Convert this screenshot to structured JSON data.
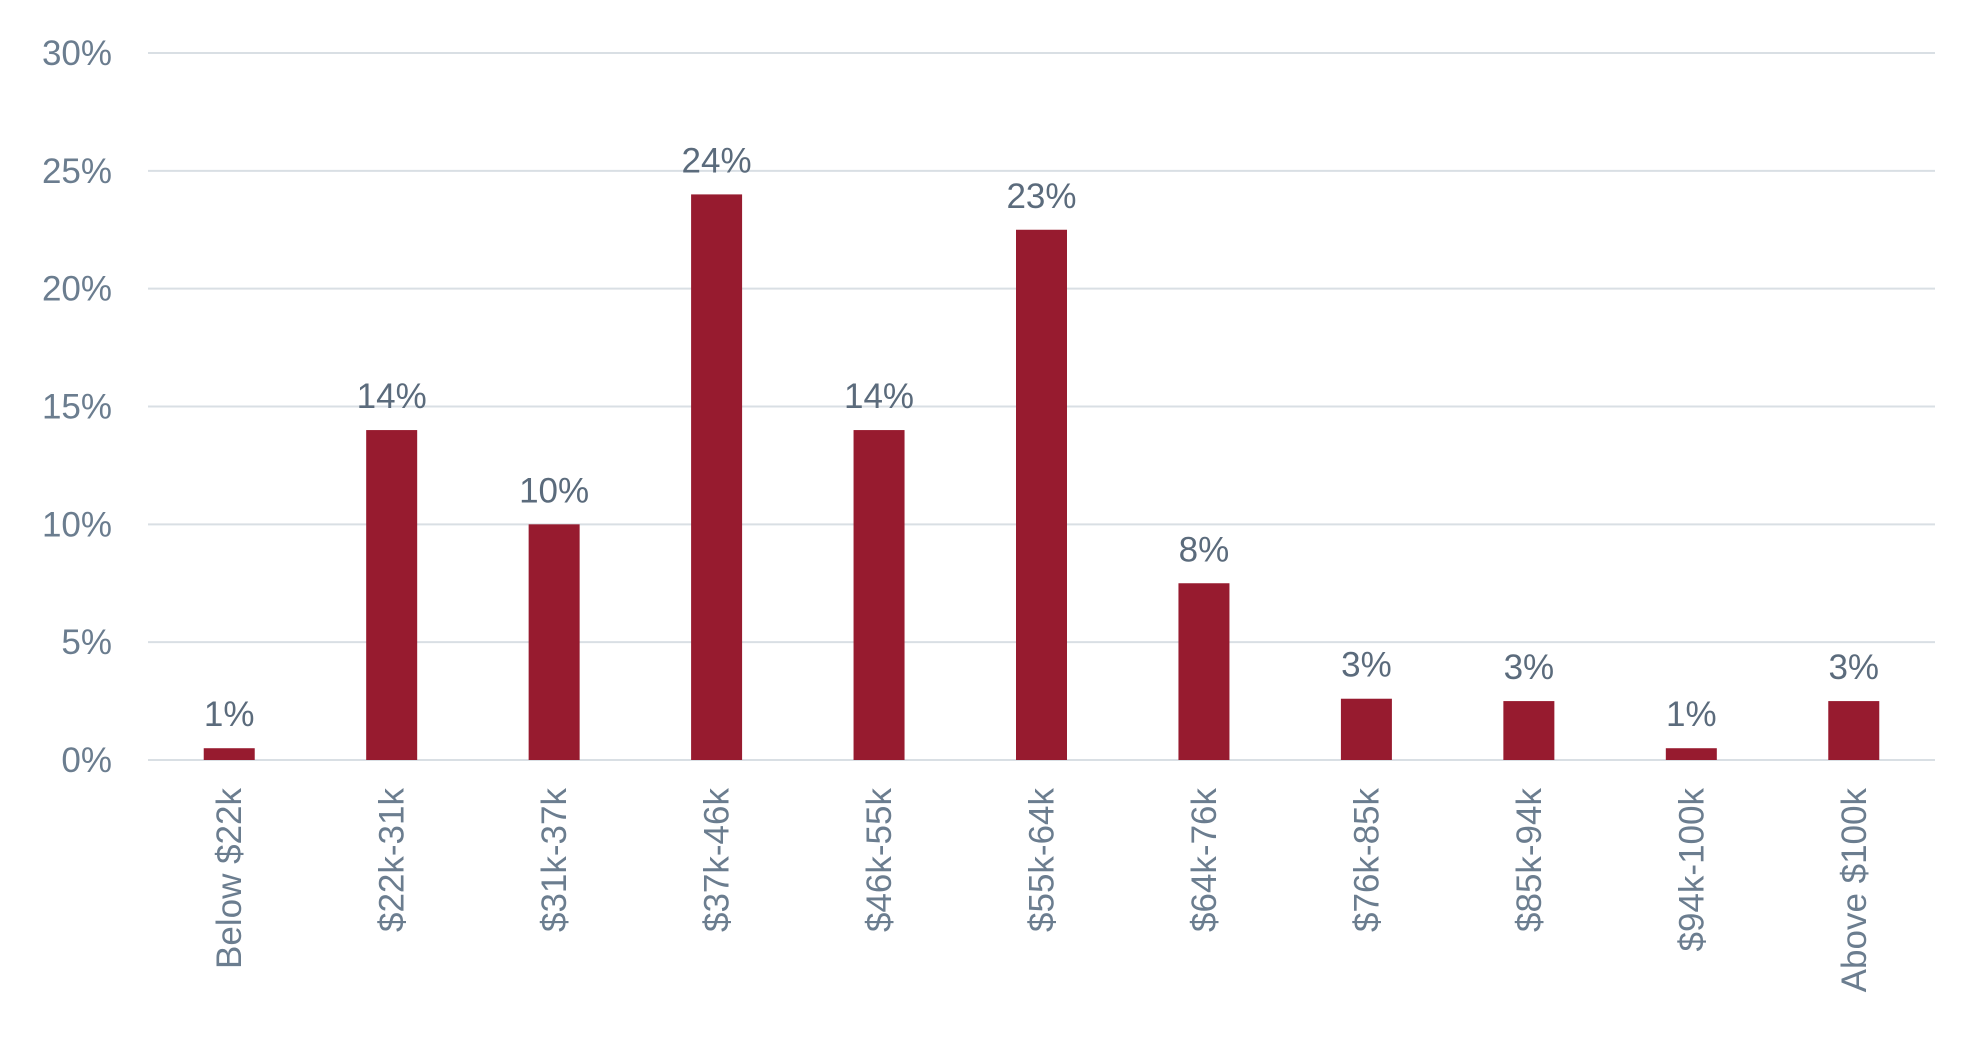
{
  "chart_data": {
    "type": "bar",
    "title": "",
    "xlabel": "",
    "ylabel": "",
    "categories": [
      "Below $22k",
      "$22k-31k",
      "$31k-37k",
      "$37k-46k",
      "$46k-55k",
      "$55k-64k",
      "$64k-76k",
      "$76k-85k",
      "$85k-94k",
      "$94k-100k",
      "Above $100k"
    ],
    "values": [
      0.5,
      14,
      10,
      24,
      14,
      22.5,
      7.5,
      2.6,
      2.5,
      0.5,
      2.5
    ],
    "data_labels": [
      "1%",
      "14%",
      "10%",
      "24%",
      "14%",
      "23%",
      "8%",
      "3%",
      "3%",
      "1%",
      "3%"
    ],
    "ylim": [
      0,
      30
    ],
    "yticks": [
      0,
      5,
      10,
      15,
      20,
      25,
      30
    ],
    "ytick_labels": [
      "0%",
      "5%",
      "10%",
      "15%",
      "20%",
      "25%",
      "30%"
    ],
    "grid": true,
    "legend": "none",
    "bar_color": "#971b2f",
    "grid_color": "#d9dfe4",
    "text_color": "#6b7d8f"
  }
}
